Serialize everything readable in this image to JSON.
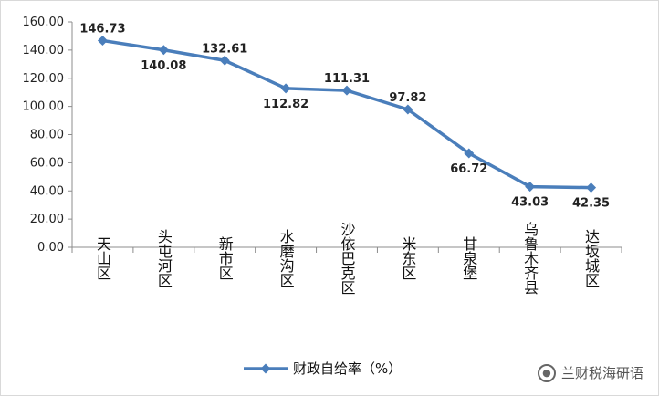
{
  "chart_data": {
    "type": "line",
    "categories": [
      "天山区",
      "头屯河区",
      "新市区",
      "水磨沟区",
      "沙依巴克区",
      "米东区",
      "甘泉堡",
      "乌鲁木齐县",
      "达坂城区"
    ],
    "series": [
      {
        "name": "财政自给率（%）",
        "values": [
          146.73,
          140.08,
          132.61,
          112.82,
          111.31,
          97.82,
          66.72,
          43.03,
          42.35
        ],
        "value_labels": [
          "146.73",
          "140.08",
          "132.61",
          "112.82",
          "111.31",
          "97.82",
          "66.72",
          "43.03",
          "42.35"
        ],
        "color": "#4a7ebb",
        "marker": "diamond"
      }
    ],
    "y_ticks": [
      0,
      20,
      40,
      60,
      80,
      100,
      120,
      140,
      160
    ],
    "y_tick_labels": [
      "0.00",
      "20.00",
      "40.00",
      "60.00",
      "80.00",
      "100.00",
      "120.00",
      "140.00",
      "160.00"
    ],
    "ylim": [
      0,
      160
    ],
    "grid": false,
    "legend_position": "bottom-center",
    "label_placement": [
      "above",
      "below",
      "above",
      "below",
      "above",
      "above",
      "below",
      "below",
      "below"
    ],
    "title": "",
    "xlabel": "",
    "ylabel": ""
  },
  "watermark": {
    "text": "兰财税海研语",
    "icon": "wechat-icon"
  }
}
